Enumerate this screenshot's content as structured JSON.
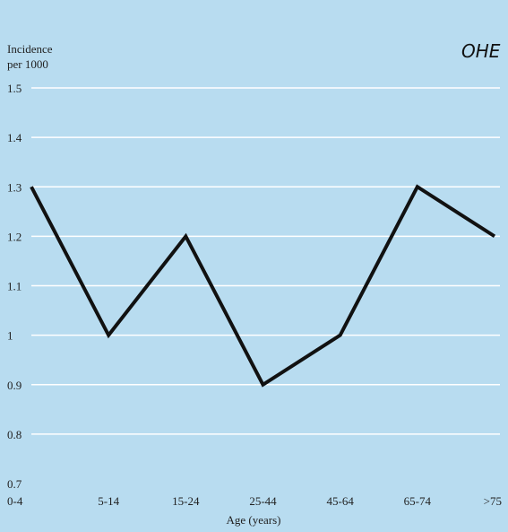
{
  "colors": {
    "background": "#b8dcf0",
    "gridline": "#ffffff",
    "line": "#111111"
  },
  "logo": {
    "text": "OHE"
  },
  "chart_data": {
    "type": "line",
    "ylabel_lines": [
      "Incidence",
      "per 1000"
    ],
    "xlabel": "Age (years)",
    "categories": [
      "0-4",
      "5-14",
      "15-24",
      "25-44",
      "45-64",
      "65-74",
      ">75"
    ],
    "series": [
      {
        "values": [
          1.3,
          1.0,
          1.2,
          0.9,
          1.0,
          1.3,
          1.2
        ]
      }
    ],
    "ylim": [
      0.7,
      1.5
    ],
    "yticks": [
      "0.7",
      "0.8",
      "0.9",
      "1",
      "1.1",
      "1.2",
      "1.3",
      "1.4",
      "1.5"
    ],
    "grid": true
  }
}
